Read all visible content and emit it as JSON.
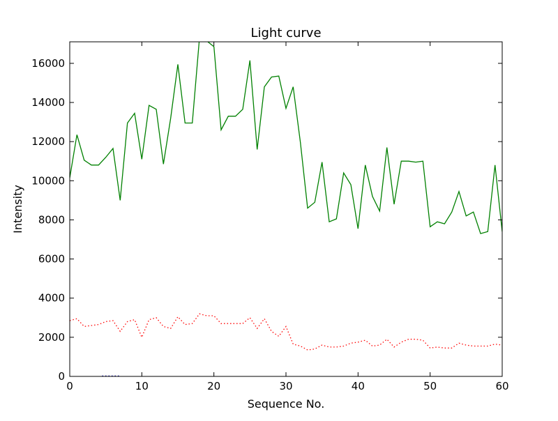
{
  "chart_data": {
    "type": "line",
    "title": "Light curve",
    "xlabel": "Sequence No.",
    "ylabel": "Intensity",
    "xlim": [
      0,
      60
    ],
    "ylim": [
      0,
      17100
    ],
    "xticks": [
      0,
      10,
      20,
      30,
      40,
      50,
      60
    ],
    "yticks": [
      0,
      2000,
      4000,
      6000,
      8000,
      10000,
      12000,
      14000,
      16000
    ],
    "grid": false,
    "series": [
      {
        "style": "solid",
        "color": "#008000",
        "x": [
          0,
          1,
          2,
          3,
          4,
          5,
          6,
          7,
          8,
          9,
          10,
          11,
          12,
          13,
          14,
          15,
          16,
          17,
          18,
          19,
          20,
          21,
          22,
          23,
          24,
          25,
          26,
          27,
          28,
          29,
          30,
          31,
          32,
          33,
          34,
          35,
          36,
          37,
          38,
          39,
          40,
          41,
          42,
          43,
          44,
          45,
          46,
          47,
          48,
          49,
          50,
          51,
          52,
          53,
          54,
          55,
          56,
          57,
          58,
          59,
          60
        ],
        "values": [
          10150,
          12350,
          11050,
          10800,
          10800,
          11200,
          11650,
          9000,
          12950,
          13450,
          11100,
          13850,
          13650,
          10850,
          13200,
          15950,
          12950,
          12950,
          17300,
          17150,
          16850,
          12600,
          13300,
          13300,
          13650,
          16150,
          11600,
          14800,
          15300,
          15350,
          13700,
          14800,
          11950,
          8600,
          8900,
          10950,
          7900,
          8050,
          10400,
          9800,
          7550,
          10800,
          9200,
          8450,
          11700,
          8800,
          11000,
          11000,
          10950,
          11000,
          7650,
          7900,
          7800,
          8400,
          9450,
          8200,
          8400,
          7300,
          7400,
          10800,
          7400
        ]
      },
      {
        "style": "dotted",
        "color": "#ff0000",
        "x": [
          0,
          1,
          2,
          3,
          4,
          5,
          6,
          7,
          8,
          9,
          10,
          11,
          12,
          13,
          14,
          15,
          16,
          17,
          18,
          19,
          20,
          21,
          22,
          23,
          24,
          25,
          26,
          27,
          28,
          29,
          30,
          31,
          32,
          33,
          34,
          35,
          36,
          37,
          38,
          39,
          40,
          41,
          42,
          43,
          44,
          45,
          46,
          47,
          48,
          49,
          50,
          51,
          52,
          53,
          54,
          55,
          56,
          57,
          58,
          59,
          60
        ],
        "values": [
          2850,
          2950,
          2550,
          2600,
          2650,
          2800,
          2850,
          2300,
          2800,
          2900,
          2000,
          2900,
          3000,
          2550,
          2450,
          3050,
          2650,
          2700,
          3200,
          3100,
          3100,
          2700,
          2700,
          2700,
          2700,
          3000,
          2450,
          2950,
          2300,
          2050,
          2550,
          1650,
          1550,
          1350,
          1400,
          1600,
          1500,
          1500,
          1550,
          1700,
          1750,
          1850,
          1550,
          1600,
          1900,
          1500,
          1750,
          1900,
          1900,
          1850,
          1450,
          1500,
          1450,
          1450,
          1700,
          1600,
          1550,
          1550,
          1550,
          1650,
          1600
        ]
      },
      {
        "style": "dotted",
        "color": "#0000aa",
        "x": [
          4.5,
          5,
          5.5,
          6,
          6.5,
          7
        ],
        "values": [
          0,
          0,
          0,
          0,
          0,
          0
        ]
      }
    ]
  }
}
